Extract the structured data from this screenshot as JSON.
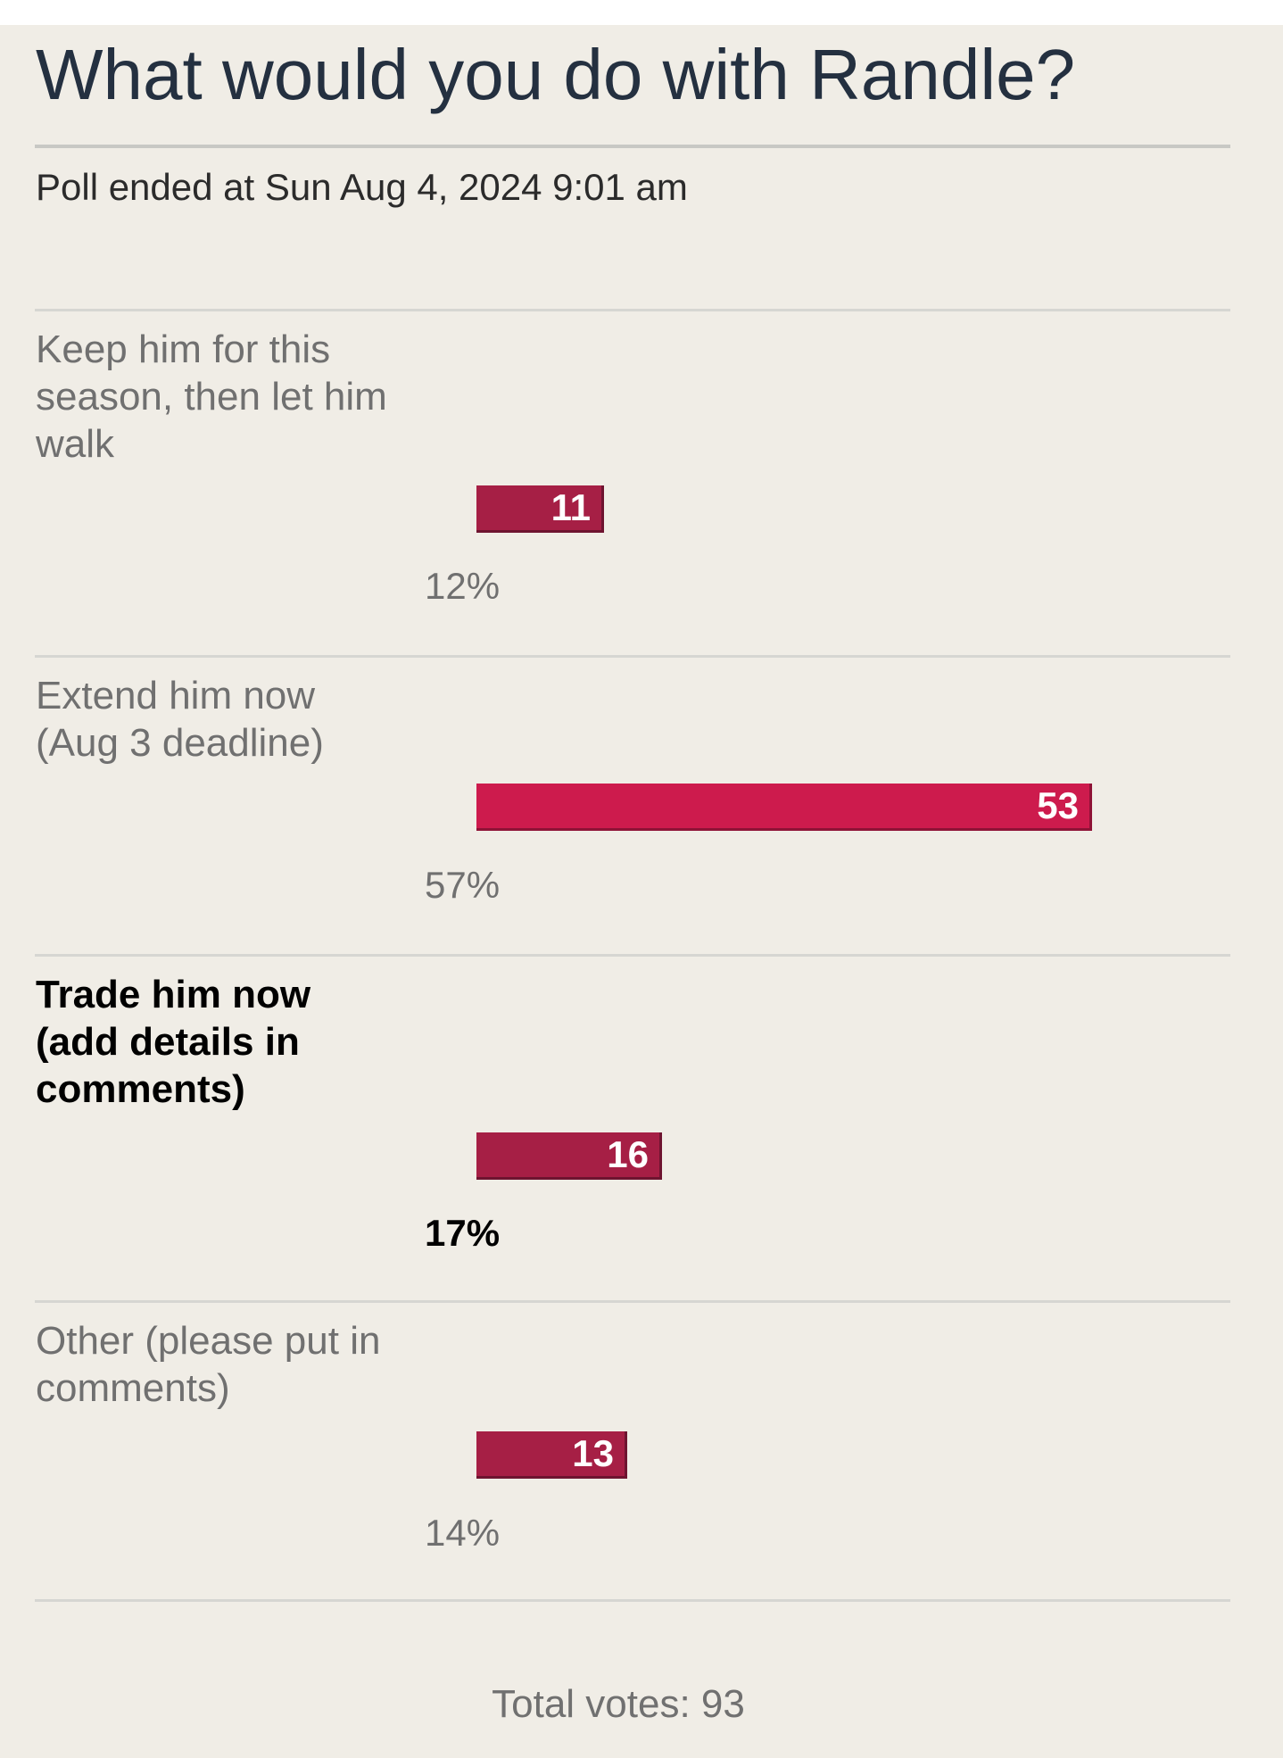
{
  "poll": {
    "title": "What would you do with Randle?",
    "ended_text": "Poll ended at Sun Aug 4, 2024 9:01 am",
    "total_votes_text": "Total votes: 93",
    "total_votes": 93,
    "colors": {
      "background": "#f0ede6",
      "bar": "#a61f45",
      "bar_leading": "#cd1b4d",
      "title": "#243040"
    },
    "options": [
      {
        "label": "Keep him for this season, then let him walk",
        "votes": "11",
        "percent": "12%",
        "voted": false,
        "leading": false
      },
      {
        "label": "Extend him now (Aug 3 deadline)",
        "votes": "53",
        "percent": "57%",
        "voted": false,
        "leading": true
      },
      {
        "label": "Trade him now (add details in comments)",
        "votes": "16",
        "percent": "17%",
        "voted": true,
        "leading": false
      },
      {
        "label": "Other (please put in comments)",
        "votes": "13",
        "percent": "14%",
        "voted": false,
        "leading": false
      }
    ]
  }
}
